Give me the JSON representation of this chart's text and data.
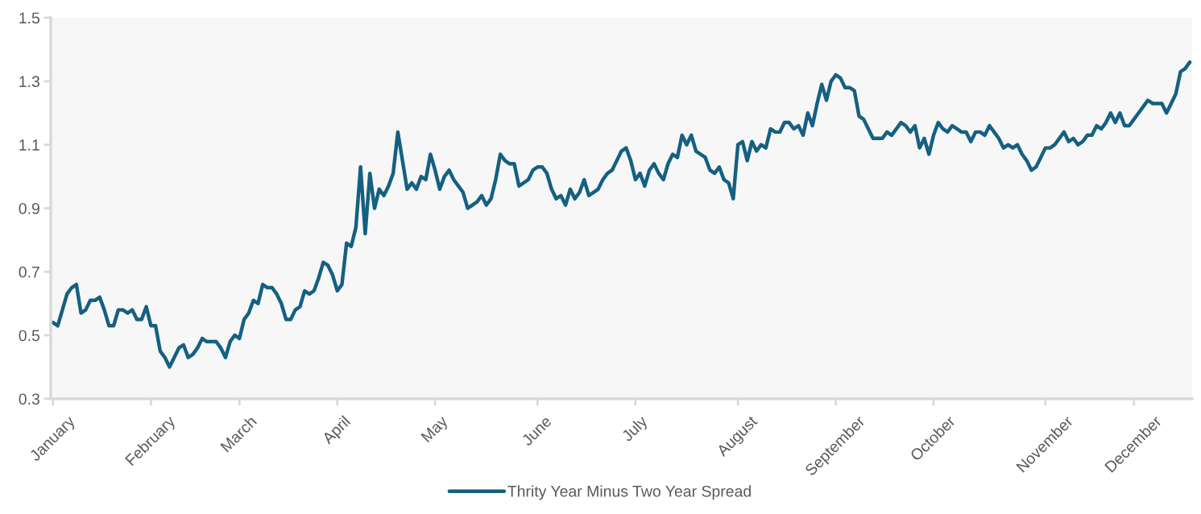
{
  "chart_data": {
    "type": "line",
    "categories": [
      "January",
      null,
      null,
      null,
      null,
      null,
      null,
      null,
      null,
      null,
      null,
      null,
      null,
      null,
      null,
      null,
      null,
      null,
      null,
      null,
      null,
      "February",
      null,
      null,
      null,
      null,
      null,
      null,
      null,
      null,
      null,
      null,
      null,
      null,
      null,
      null,
      null,
      null,
      null,
      null,
      "March",
      null,
      null,
      null,
      null,
      null,
      null,
      null,
      null,
      null,
      null,
      null,
      null,
      null,
      null,
      null,
      null,
      null,
      null,
      null,
      null,
      "April",
      null,
      null,
      null,
      null,
      null,
      null,
      null,
      null,
      null,
      null,
      null,
      null,
      null,
      null,
      null,
      null,
      null,
      null,
      null,
      null,
      "May",
      null,
      null,
      null,
      null,
      null,
      null,
      null,
      null,
      null,
      null,
      null,
      null,
      null,
      null,
      null,
      null,
      null,
      null,
      null,
      null,
      null,
      "June",
      null,
      null,
      null,
      null,
      null,
      null,
      null,
      null,
      null,
      null,
      null,
      null,
      null,
      null,
      null,
      null,
      null,
      null,
      null,
      null,
      "July",
      null,
      null,
      null,
      null,
      null,
      null,
      null,
      null,
      null,
      null,
      null,
      null,
      null,
      null,
      null,
      null,
      null,
      null,
      null,
      null,
      null,
      "August",
      null,
      null,
      null,
      null,
      null,
      null,
      null,
      null,
      null,
      null,
      null,
      null,
      null,
      null,
      null,
      null,
      null,
      null,
      null,
      null,
      "September",
      null,
      null,
      null,
      null,
      null,
      null,
      null,
      null,
      null,
      null,
      null,
      null,
      null,
      null,
      null,
      null,
      null,
      null,
      null,
      null,
      "October",
      null,
      null,
      null,
      null,
      null,
      null,
      null,
      null,
      null,
      null,
      null,
      null,
      null,
      null,
      null,
      null,
      null,
      null,
      null,
      null,
      null,
      null,
      null,
      "November",
      null,
      null,
      null,
      null,
      null,
      null,
      null,
      null,
      null,
      null,
      null,
      null,
      null,
      null,
      null,
      null,
      null,
      null,
      "December",
      null,
      null,
      null,
      null,
      null,
      null,
      null,
      null,
      null,
      null,
      null,
      null
    ],
    "series": [
      {
        "name": "Thrity Year Minus Two Year Spread",
        "color": "#156082",
        "values": [
          0.54,
          0.53,
          0.58,
          0.63,
          0.65,
          0.66,
          0.57,
          0.58,
          0.61,
          0.61,
          0.62,
          0.58,
          0.53,
          0.53,
          0.58,
          0.58,
          0.57,
          0.58,
          0.55,
          0.55,
          0.59,
          0.53,
          0.53,
          0.45,
          0.43,
          0.4,
          0.43,
          0.46,
          0.47,
          0.43,
          0.44,
          0.46,
          0.49,
          0.48,
          0.48,
          0.48,
          0.46,
          0.43,
          0.48,
          0.5,
          0.49,
          0.55,
          0.57,
          0.61,
          0.6,
          0.66,
          0.65,
          0.65,
          0.63,
          0.6,
          0.55,
          0.55,
          0.58,
          0.59,
          0.64,
          0.63,
          0.64,
          0.68,
          0.73,
          0.72,
          0.69,
          0.64,
          0.66,
          0.79,
          0.78,
          0.84,
          1.03,
          0.82,
          1.01,
          0.9,
          0.96,
          0.94,
          0.97,
          1.01,
          1.14,
          1.05,
          0.96,
          0.98,
          0.96,
          1.0,
          0.99,
          1.07,
          1.02,
          0.96,
          1.0,
          1.02,
          0.99,
          0.97,
          0.95,
          0.9,
          0.91,
          0.92,
          0.94,
          0.91,
          0.93,
          0.99,
          1.07,
          1.05,
          1.04,
          1.04,
          0.97,
          0.98,
          0.99,
          1.02,
          1.03,
          1.03,
          1.01,
          0.96,
          0.93,
          0.94,
          0.91,
          0.96,
          0.93,
          0.95,
          0.99,
          0.94,
          0.95,
          0.96,
          0.99,
          1.01,
          1.02,
          1.05,
          1.08,
          1.09,
          1.05,
          0.99,
          1.01,
          0.97,
          1.02,
          1.04,
          1.01,
          0.99,
          1.04,
          1.07,
          1.06,
          1.13,
          1.1,
          1.13,
          1.08,
          1.07,
          1.06,
          1.02,
          1.01,
          1.03,
          0.99,
          0.98,
          0.93,
          1.1,
          1.11,
          1.05,
          1.11,
          1.08,
          1.1,
          1.09,
          1.15,
          1.14,
          1.14,
          1.17,
          1.17,
          1.15,
          1.16,
          1.13,
          1.2,
          1.16,
          1.23,
          1.29,
          1.24,
          1.3,
          1.32,
          1.31,
          1.28,
          1.28,
          1.27,
          1.19,
          1.18,
          1.15,
          1.12,
          1.12,
          1.12,
          1.14,
          1.13,
          1.15,
          1.17,
          1.16,
          1.14,
          1.16,
          1.09,
          1.12,
          1.07,
          1.13,
          1.17,
          1.15,
          1.14,
          1.16,
          1.15,
          1.14,
          1.14,
          1.11,
          1.14,
          1.14,
          1.13,
          1.16,
          1.14,
          1.12,
          1.09,
          1.1,
          1.09,
          1.1,
          1.07,
          1.05,
          1.02,
          1.03,
          1.06,
          1.09,
          1.09,
          1.1,
          1.12,
          1.14,
          1.11,
          1.12,
          1.1,
          1.11,
          1.13,
          1.13,
          1.16,
          1.15,
          1.17,
          1.2,
          1.17,
          1.2,
          1.16,
          1.16,
          1.18,
          1.2,
          1.22,
          1.24,
          1.23,
          1.23,
          1.23,
          1.2,
          1.23,
          1.26,
          1.33,
          1.34,
          1.36
        ]
      }
    ],
    "ylim": [
      0.3,
      1.5
    ],
    "yticks": [
      0.3,
      0.5,
      0.7,
      0.9,
      1.1,
      1.3,
      1.5
    ],
    "grid": false,
    "legend": "bottom",
    "marker": "none",
    "line_style": "solid"
  }
}
